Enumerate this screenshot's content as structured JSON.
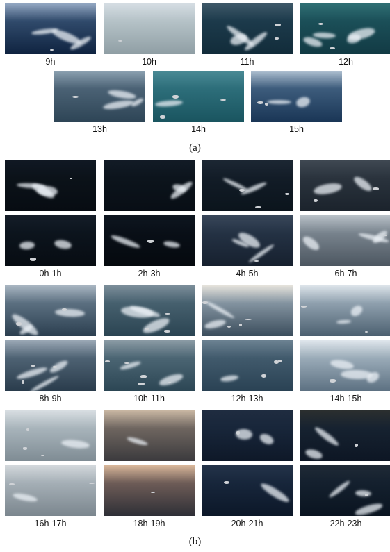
{
  "panel_a": {
    "caption": "(a)",
    "rows": [
      [
        {
          "label": "9h",
          "palette": [
            "#93a7c2",
            "#304a6b",
            "#0f2340"
          ],
          "wakes": 3,
          "boats": 1
        },
        {
          "label": "10h",
          "palette": [
            "#d5dde3",
            "#b5c2c7",
            "#8f9ea4"
          ],
          "wakes": 0,
          "boats": 1
        },
        {
          "label": "11h",
          "palette": [
            "#3e5868",
            "#1c3a4b",
            "#122c3a"
          ],
          "wakes": 3,
          "boats": 2
        },
        {
          "label": "12h",
          "palette": [
            "#2f6f74",
            "#1b4f58",
            "#123a44"
          ],
          "wakes": 4,
          "boats": 2
        }
      ],
      [
        {
          "label": "13h",
          "palette": [
            "#8ba0b0",
            "#4b6275",
            "#2e4556"
          ],
          "wakes": 3,
          "boats": 1
        },
        {
          "label": "14h",
          "palette": [
            "#4a8a95",
            "#2d6e7a",
            "#1a5560"
          ],
          "wakes": 1,
          "boats": 3
        },
        {
          "label": "15h",
          "palette": [
            "#aebfd0",
            "#3d5c7c",
            "#1a3656"
          ],
          "wakes": 2,
          "boats": 2
        }
      ]
    ]
  },
  "panel_b": {
    "caption": "(b)",
    "groups": [
      {
        "labels": [
          "0h-1h",
          "2h-3h",
          "4h-5h",
          "6h-7h"
        ],
        "top": [
          {
            "palette": [
              "#101823",
              "#0b1219",
              "#070c12"
            ],
            "wakes": 3,
            "boats": 1
          },
          {
            "palette": [
              "#121b26",
              "#0c141c",
              "#080e15"
            ],
            "wakes": 2,
            "boats": 0
          },
          {
            "palette": [
              "#1c2733",
              "#121c27",
              "#0b141c"
            ],
            "wakes": 2,
            "boats": 3
          },
          {
            "palette": [
              "#3f4852",
              "#2a333d",
              "#1b232c"
            ],
            "wakes": 2,
            "boats": 2
          }
        ],
        "bottom": [
          {
            "palette": [
              "#141d28",
              "#0c141d",
              "#070c12"
            ],
            "wakes": 2,
            "boats": 1
          },
          {
            "palette": [
              "#0e1620",
              "#090f17",
              "#05090e"
            ],
            "wakes": 2,
            "boats": 1
          },
          {
            "palette": [
              "#39475a",
              "#243244",
              "#16202e"
            ],
            "wakes": 3,
            "boats": 1
          },
          {
            "palette": [
              "#b9c1c8",
              "#78838d",
              "#4c5660"
            ],
            "wakes": 3,
            "boats": 1
          }
        ]
      },
      {
        "labels": [
          "8h-9h",
          "10h-11h",
          "12h-13h",
          "14h-15h"
        ],
        "top": [
          {
            "palette": [
              "#a9b6c2",
              "#5b6f80",
              "#2c3f50"
            ],
            "wakes": 3,
            "boats": 2
          },
          {
            "palette": [
              "#7c8e9a",
              "#46606e",
              "#2b4452"
            ],
            "wakes": 3,
            "boats": 3
          },
          {
            "palette": [
              "#e6e3dc",
              "#8393a0",
              "#3b4d5c"
            ],
            "wakes": 2,
            "boats": 4
          },
          {
            "palette": [
              "#dde4ea",
              "#8fa0ae",
              "#4c6070"
            ],
            "wakes": 2,
            "boats": 2
          }
        ],
        "bottom": [
          {
            "palette": [
              "#9aa8b5",
              "#4e6273",
              "#2a3c4c"
            ],
            "wakes": 3,
            "boats": 3
          },
          {
            "palette": [
              "#8b9ba5",
              "#4b6573",
              "#2c4654"
            ],
            "wakes": 2,
            "boats": 5
          },
          {
            "palette": [
              "#6c8292",
              "#415a6c",
              "#2a4254"
            ],
            "wakes": 1,
            "boats": 3
          },
          {
            "palette": [
              "#dfe6ec",
              "#9aabb8",
              "#5d7182"
            ],
            "wakes": 3,
            "boats": 1
          }
        ]
      },
      {
        "labels": [
          "16h-17h",
          "18h-19h",
          "20h-21h",
          "22h-23h"
        ],
        "top": [
          {
            "palette": [
              "#d8dee2",
              "#a8b4bb",
              "#7f8c94"
            ],
            "wakes": 1,
            "boats": 3
          },
          {
            "palette": [
              "#c9b7a3",
              "#6f6660",
              "#3b3a3d"
            ],
            "wakes": 1,
            "boats": 0
          },
          {
            "palette": [
              "#1f2c40",
              "#18263a",
              "#0e1828"
            ],
            "wakes": 2,
            "boats": 1
          },
          {
            "palette": [
              "#2b2f2f",
              "#162230",
              "#0d1624"
            ],
            "wakes": 2,
            "boats": 1
          }
        ],
        "bottom": [
          {
            "palette": [
              "#d3d8dc",
              "#a5afb6",
              "#7b868e"
            ],
            "wakes": 1,
            "boats": 2
          },
          {
            "palette": [
              "#d9b79a",
              "#6e5c57",
              "#2e2f36"
            ],
            "wakes": 0,
            "boats": 1
          },
          {
            "palette": [
              "#243349",
              "#17263b",
              "#0c1728"
            ],
            "wakes": 1,
            "boats": 1
          },
          {
            "palette": [
              "#1f2a36",
              "#14202e",
              "#0a1420"
            ],
            "wakes": 3,
            "boats": 1
          }
        ]
      }
    ]
  }
}
